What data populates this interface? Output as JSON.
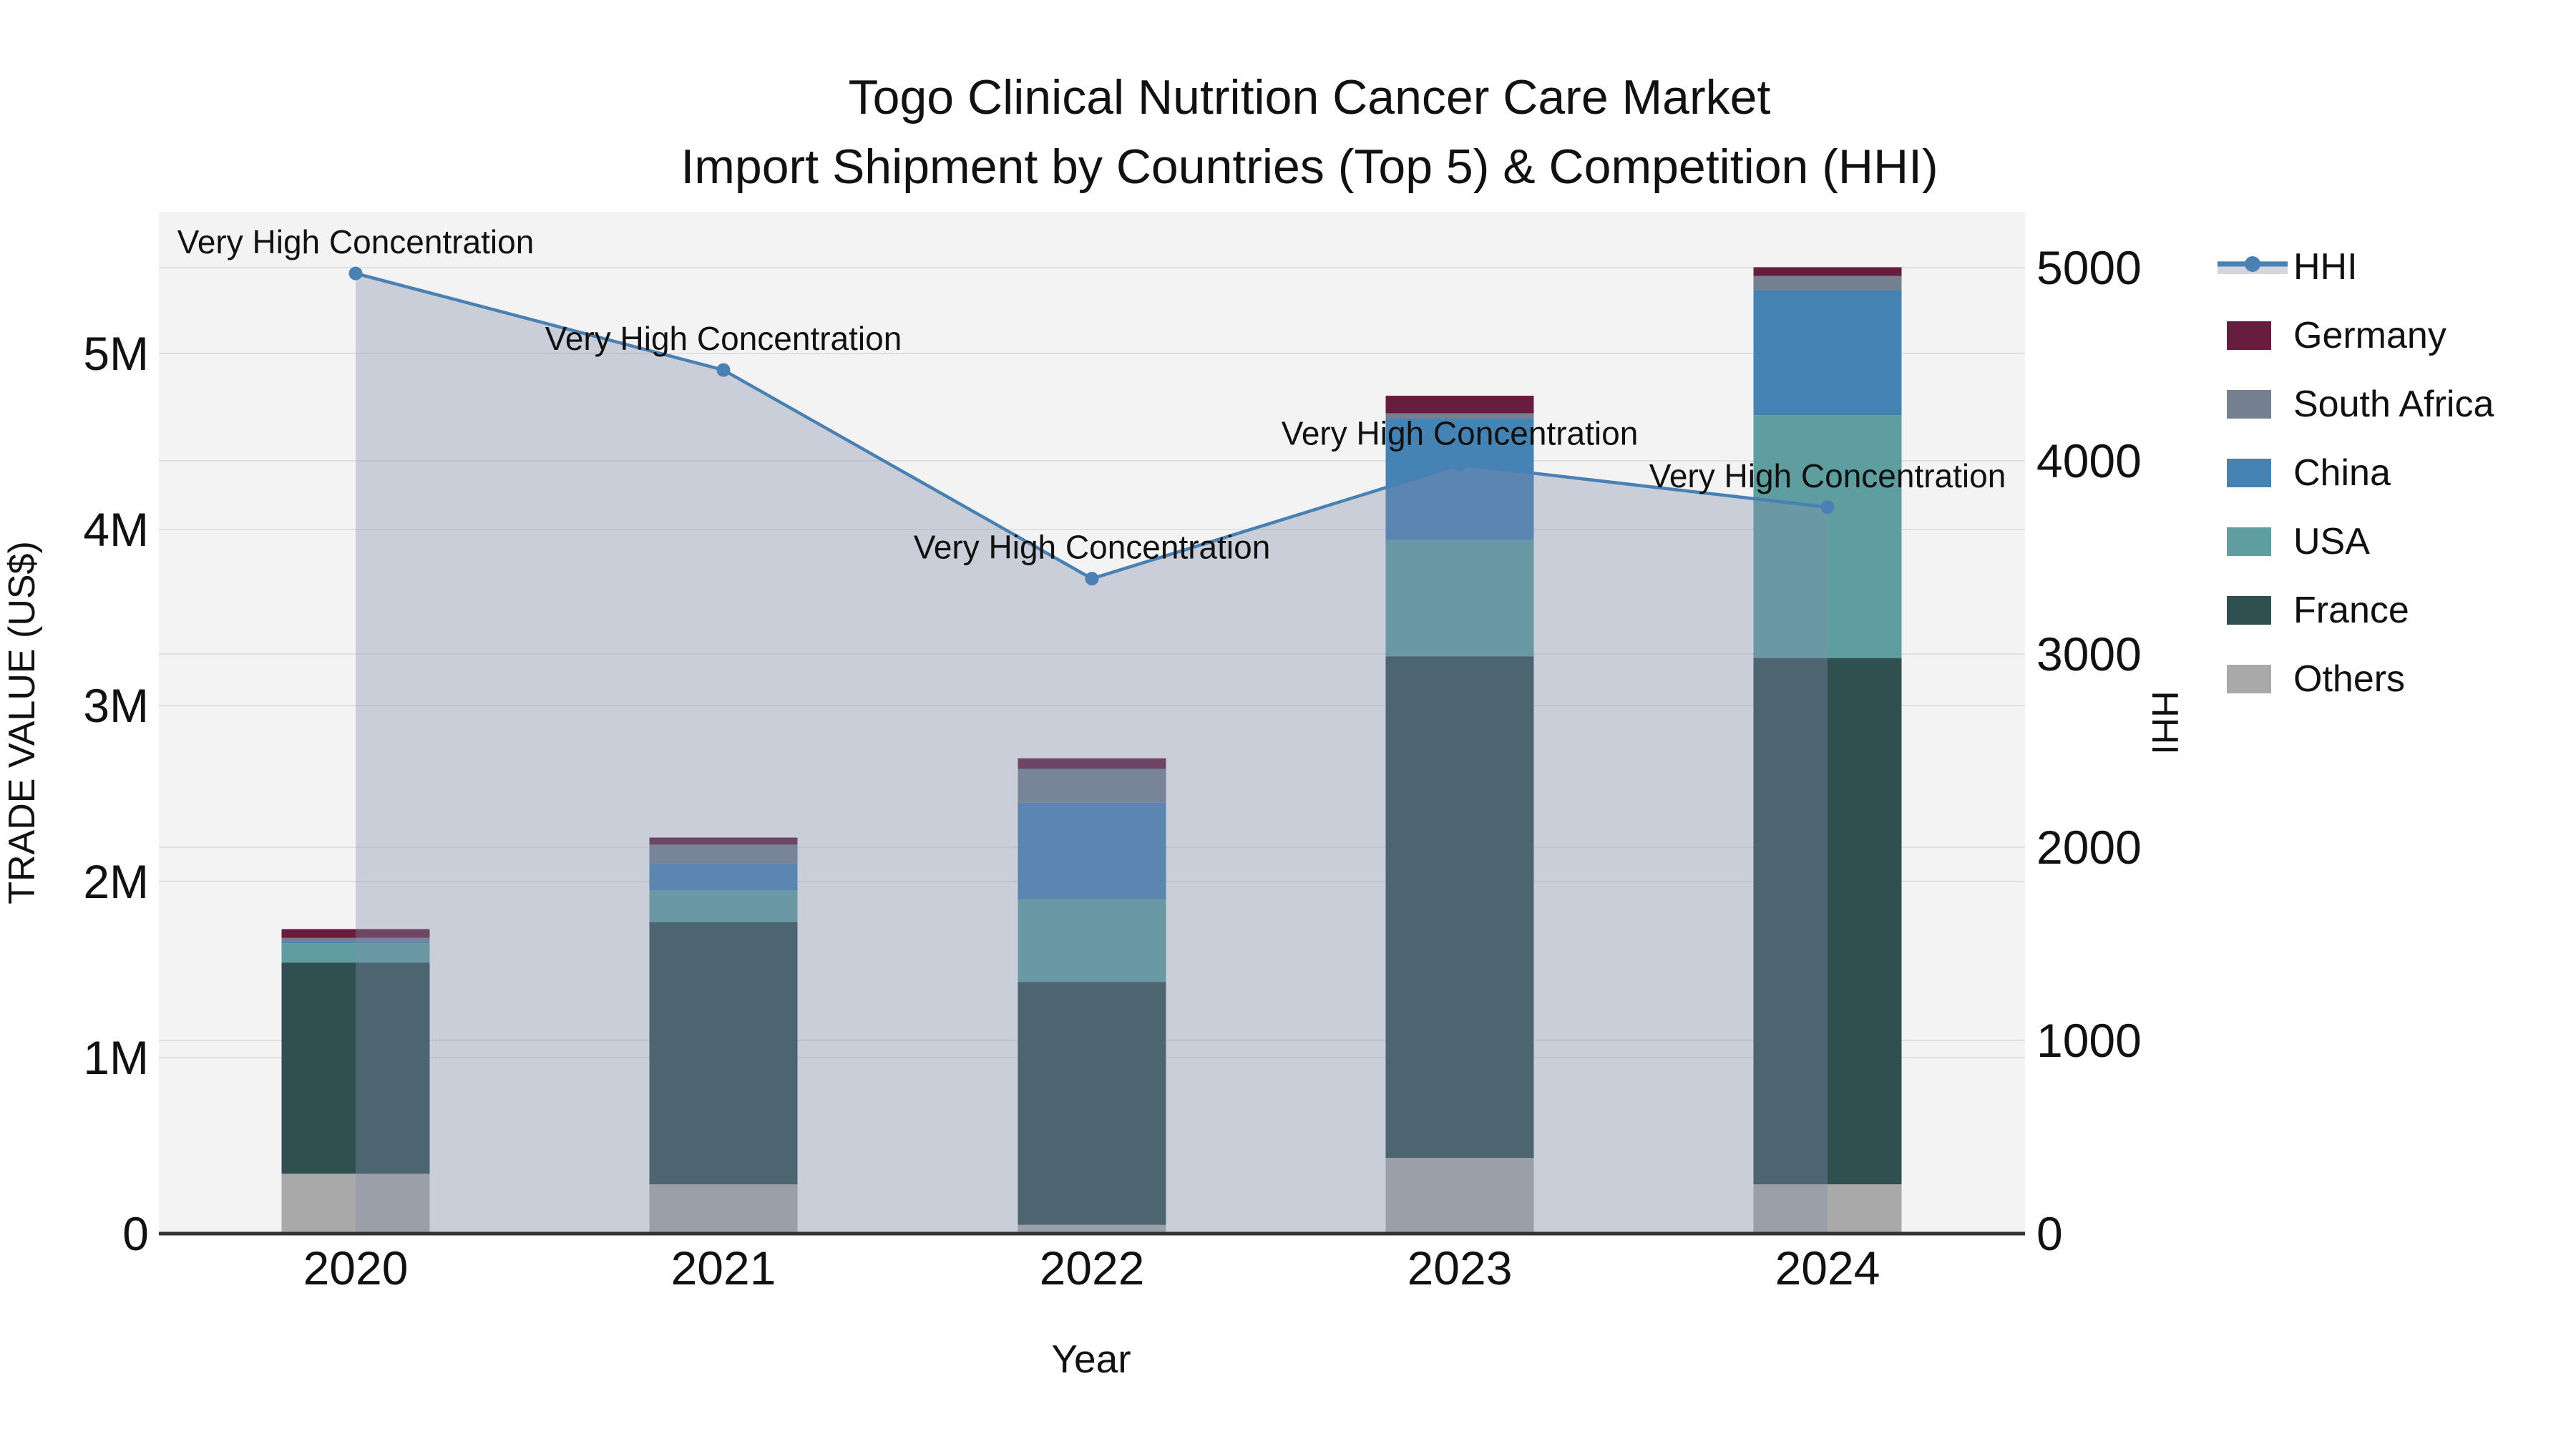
{
  "figure": {
    "title_line1": "Togo Clinical Nutrition Cancer Care Market",
    "title_line2": "Import Shipment by Countries (Top 5) & Competition (HHI)"
  },
  "legend": {
    "items": [
      {
        "label": "HHI",
        "type": "line",
        "color": "#4a81b4"
      },
      {
        "label": "Germany",
        "type": "swatch",
        "color": "#671d3d"
      },
      {
        "label": "South Africa",
        "type": "swatch",
        "color": "#74808f"
      },
      {
        "label": "China",
        "type": "swatch",
        "color": "#4583b5"
      },
      {
        "label": "USA",
        "type": "swatch",
        "color": "#5f9ea0"
      },
      {
        "label": "France",
        "type": "swatch",
        "color": "#2f4f50"
      },
      {
        "label": "Others",
        "type": "swatch",
        "color": "#a9a9a9"
      }
    ]
  },
  "chart_data": {
    "type": "bar+line",
    "title": "Togo Clinical Nutrition Cancer Care Market Import Shipment by Countries (Top 5) & Competition (HHI)",
    "categories": [
      "2020",
      "2021",
      "2022",
      "2023",
      "2024"
    ],
    "xlabel": "Year",
    "bar_unit": "M US$",
    "series": [
      {
        "name": "Others",
        "color": "#a9a9a9",
        "values": [
          0.34,
          0.28,
          0.05,
          0.43,
          0.28
        ]
      },
      {
        "name": "France",
        "color": "#2f4f50",
        "values": [
          1.2,
          1.49,
          1.38,
          2.85,
          2.99
        ]
      },
      {
        "name": "USA",
        "color": "#5f9ea0",
        "values": [
          0.11,
          0.18,
          0.47,
          0.66,
          1.38
        ]
      },
      {
        "name": "China",
        "color": "#4583b5",
        "values": [
          0.01,
          0.15,
          0.55,
          0.69,
          0.71
        ]
      },
      {
        "name": "South Africa",
        "color": "#74808f",
        "values": [
          0.02,
          0.11,
          0.19,
          0.03,
          0.08
        ]
      },
      {
        "name": "Germany",
        "color": "#671d3d",
        "values": [
          0.05,
          0.04,
          0.06,
          0.1,
          0.05
        ]
      }
    ],
    "bar_totals_M": [
      1.73,
      2.25,
      2.7,
      4.76,
      5.49
    ],
    "line": {
      "name": "HHI",
      "color": "#4a81b4",
      "fill": "rgba(128,140,172,0.36)",
      "values": [
        4970,
        4470,
        3390,
        3980,
        3760
      ],
      "annotations": [
        "Very High Concentration",
        "Very High Concentration",
        "Very High Concentration",
        "Very High Concentration",
        "Very High Concentration"
      ]
    },
    "left_axis": {
      "label": "TRADE VALUE (US$)",
      "tick_values": [
        0,
        1,
        2,
        3,
        4,
        5
      ],
      "tick_labels": [
        "0",
        "1M",
        "2M",
        "3M",
        "4M",
        "5M"
      ],
      "range_M": [
        0,
        5.8
      ]
    },
    "right_axis": {
      "label": "HHI",
      "tick_values": [
        0,
        1000,
        2000,
        3000,
        4000,
        5000
      ],
      "tick_labels": [
        "0",
        "1000",
        "2000",
        "3000",
        "4000",
        "5000"
      ],
      "range": [
        0,
        5290
      ]
    },
    "style": {
      "plot_bg": "#f3f3f3",
      "gridline": "#e1e1e1",
      "axis_line": "#333333",
      "text_color": "#111111",
      "grid": "on",
      "legend_position": "right"
    }
  }
}
